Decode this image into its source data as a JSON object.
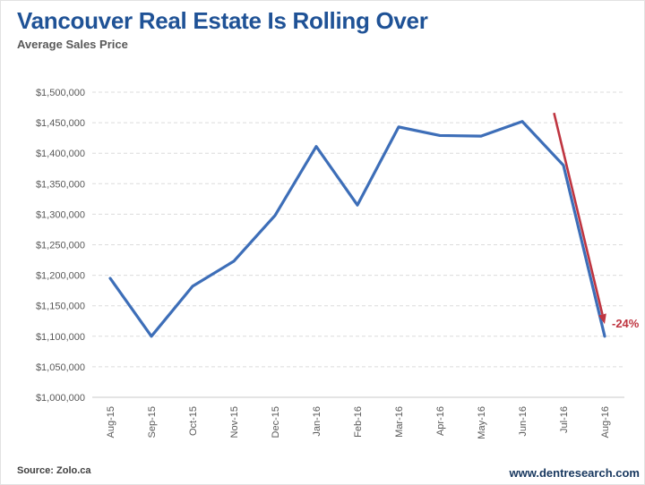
{
  "header": {
    "title": "Vancouver Real Estate Is Rolling Over",
    "subtitle": "Average Sales Price"
  },
  "footer": {
    "source": "Source: Zolo.ca",
    "website": "www.dentresearch.com"
  },
  "colors": {
    "title": "#1f5296",
    "subtitle": "#595959",
    "line": "#3d6eb8",
    "arrow": "#bf3540",
    "grid": "#dcdcdc",
    "axis": "#c8c8c8",
    "tick": "#595959",
    "source": "#404040",
    "website": "#17375e"
  },
  "chart_data": {
    "type": "line",
    "title": "Vancouver Real Estate Is Rolling Over",
    "subtitle": "Average Sales Price",
    "xlabel": "",
    "ylabel": "",
    "legend_position": "none",
    "grid": "horizontal-dashed",
    "categories": [
      "Aug-15",
      "Sep-15",
      "Oct-15",
      "Nov-15",
      "Dec-15",
      "Jan-16",
      "Feb-16",
      "Mar-16",
      "Apr-16",
      "May-16",
      "Jun-16",
      "Jul-16",
      "Aug-16"
    ],
    "series": [
      {
        "name": "Average Sales Price",
        "values": [
          1195000,
          1100000,
          1182000,
          1223000,
          1298000,
          1411000,
          1315000,
          1443000,
          1429000,
          1428000,
          1452000,
          1380000,
          1100000
        ]
      }
    ],
    "ylim": [
      1000000,
      1500000
    ],
    "y_ticks": [
      {
        "value": 1000000,
        "label": "$1,000,000"
      },
      {
        "value": 1050000,
        "label": "$1,050,000"
      },
      {
        "value": 1100000,
        "label": "$1,100,000"
      },
      {
        "value": 1150000,
        "label": "$1,150,000"
      },
      {
        "value": 1200000,
        "label": "$1,200,000"
      },
      {
        "value": 1250000,
        "label": "$1,250,000"
      },
      {
        "value": 1300000,
        "label": "$1,300,000"
      },
      {
        "value": 1350000,
        "label": "$1,350,000"
      },
      {
        "value": 1400000,
        "label": "$1,400,000"
      },
      {
        "value": 1450000,
        "label": "$1,450,000"
      },
      {
        "value": 1500000,
        "label": "$1,500,000"
      }
    ],
    "annotation": {
      "label": "-24%",
      "arrow_from": {
        "index": 10.77,
        "value": 1466000
      },
      "arrow_to": {
        "index": 12,
        "value": 1120000
      }
    }
  }
}
